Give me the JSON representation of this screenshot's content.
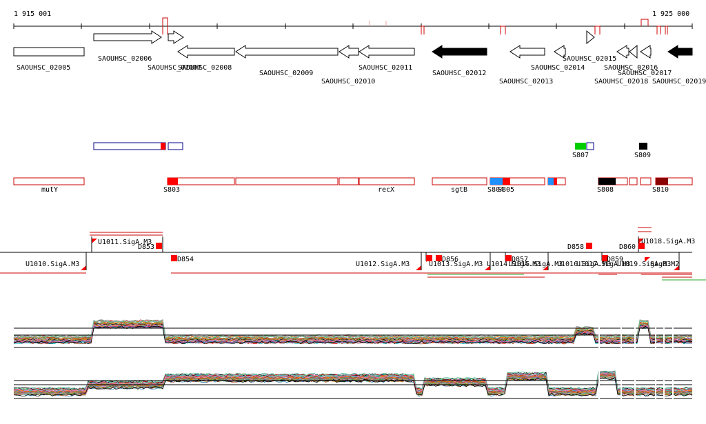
{
  "ruler": {
    "start_label": "1 915 001",
    "end_label": "1 925 000"
  },
  "genes": [
    {
      "id": "SAOUHSC_02005",
      "label": "SAOUHSC_02005",
      "strand": "none",
      "fill": "white"
    },
    {
      "id": "SAOUHSC_02006",
      "label": "SAOUHSC_02006",
      "strand": "+",
      "fill": "white"
    },
    {
      "id": "SAOUHSC_02007",
      "label": "SAOUHSC_02007",
      "strand": "+",
      "fill": "white"
    },
    {
      "id": "SAOUHSC_02008",
      "label": "SAOUHSC_02008",
      "strand": "-",
      "fill": "white"
    },
    {
      "id": "SAOUHSC_02009",
      "label": "SAOUHSC_02009",
      "strand": "-",
      "fill": "white"
    },
    {
      "id": "SAOUHSC_02010",
      "label": "SAOUHSC_02010",
      "strand": "-",
      "fill": "white"
    },
    {
      "id": "SAOUHSC_02011",
      "label": "SAOUHSC_02011",
      "strand": "-",
      "fill": "white"
    },
    {
      "id": "SAOUHSC_02012",
      "label": "SAOUHSC_02012",
      "strand": "-",
      "fill": "black"
    },
    {
      "id": "SAOUHSC_02013",
      "label": "SAOUHSC_02013",
      "strand": "-",
      "fill": "white"
    },
    {
      "id": "SAOUHSC_02014",
      "label": "SAOUHSC_02014",
      "strand": "-",
      "fill": "white"
    },
    {
      "id": "SAOUHSC_02015",
      "label": "SAOUHSC_02015",
      "strand": "+",
      "fill": "white"
    },
    {
      "id": "SAOUHSC_02016",
      "label": "SAOUHSC_02016",
      "strand": "-",
      "fill": "white"
    },
    {
      "id": "SAOUHSC_02017",
      "label": "SAOUHSC_02017",
      "strand": "-",
      "fill": "white"
    },
    {
      "id": "SAOUHSC_02018",
      "label": "SAOUHSC_02018",
      "strand": "-",
      "fill": "white"
    },
    {
      "id": "SAOUHSC_02019",
      "label": "SAOUHSC_02019",
      "strand": "-",
      "fill": "black"
    }
  ],
  "gene_names": [
    "mutY",
    "recX",
    "sgtB"
  ],
  "segments": [
    "S803",
    "S804",
    "S805",
    "S807",
    "S808",
    "S809",
    "S810"
  ],
  "segment_colors": {
    "red": "#ff0000",
    "blue": "#1e90ff",
    "green": "#00cc00",
    "black": "#000000",
    "darkred": "#8b0000",
    "navy": "#00008b"
  },
  "transcription_units": [
    "U1010.SigA.M3",
    "U1011.SigA.M3",
    "U1012.SigA.M3",
    "U1013.SigA.M3",
    "U1014.SigA.M3",
    "U1015.SigA.M3",
    "U1016.SigA.M3",
    "U1017.SigA.M3",
    "U1018.SigA.M3",
    "U1019.SigA.M3",
    "SigB.M2"
  ],
  "downshifts": [
    "D853",
    "D854",
    "D856",
    "D857",
    "D858",
    "D859",
    "D860"
  ],
  "expression_tracks": {
    "colors": [
      "#e41a1c",
      "#377eb8",
      "#4daf4a",
      "#984ea3",
      "#ff7f00",
      "#a65628",
      "#f781bf",
      "#999999",
      "#66c2a5",
      "#000000",
      "#b8860b",
      "#00ced1"
    ]
  }
}
